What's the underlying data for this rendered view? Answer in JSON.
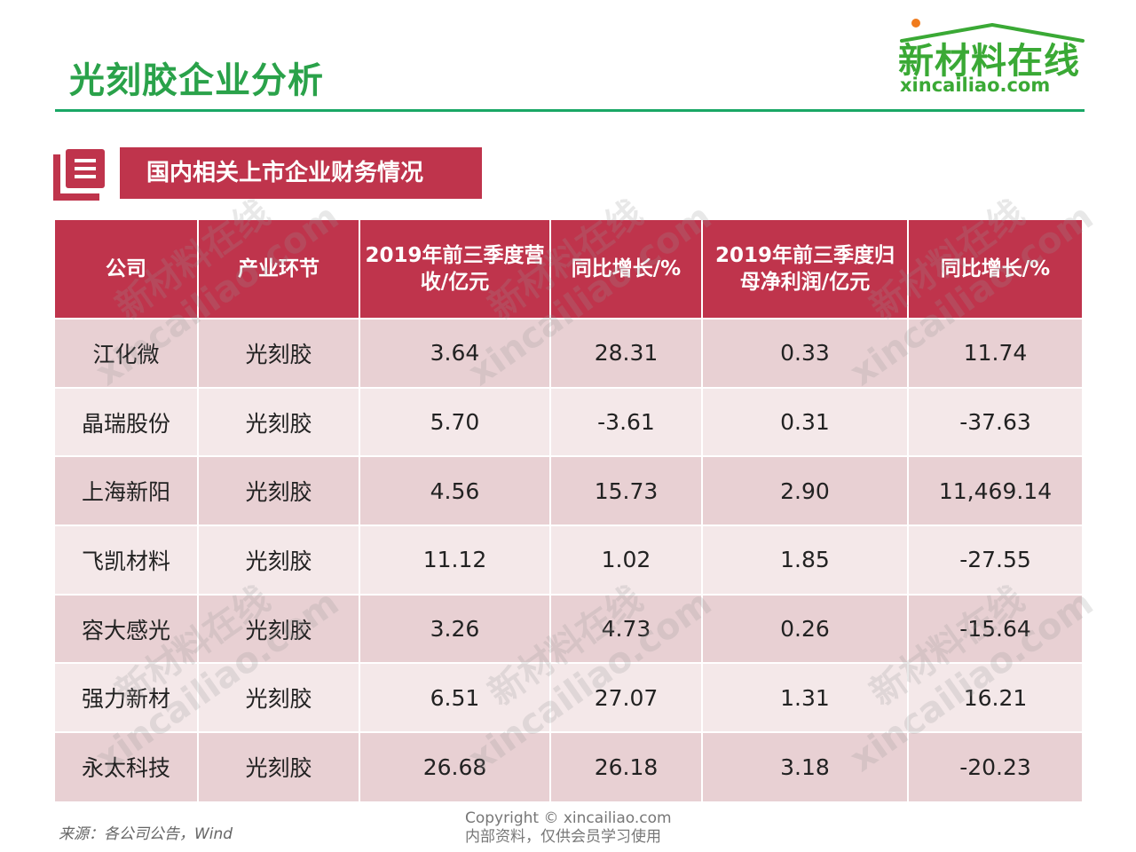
{
  "title": "光刻胶企业分析",
  "logo": {
    "cn": "新材料在线",
    "en": "xincailiao.com"
  },
  "section": {
    "title": "国内相关上市企业财务情况"
  },
  "table": {
    "headers": [
      "公司",
      "产业环节",
      "2019年前三季度营收/亿元",
      "同比增长/%",
      "2019年前三季度归母净利润/亿元",
      "同比增长/%"
    ],
    "rows": [
      [
        "江化微",
        "光刻胶",
        "3.64",
        "28.31",
        "0.33",
        "11.74"
      ],
      [
        "晶瑞股份",
        "光刻胶",
        "5.70",
        "-3.61",
        "0.31",
        "-37.63"
      ],
      [
        "上海新阳",
        "光刻胶",
        "4.56",
        "15.73",
        "2.90",
        "11,469.14"
      ],
      [
        "飞凯材料",
        "光刻胶",
        "11.12",
        "1.02",
        "1.85",
        "-27.55"
      ],
      [
        "容大感光",
        "光刻胶",
        "3.26",
        "4.73",
        "0.26",
        "-15.64"
      ],
      [
        "强力新材",
        "光刻胶",
        "6.51",
        "27.07",
        "1.31",
        "16.21"
      ],
      [
        "永太科技",
        "光刻胶",
        "26.68",
        "26.18",
        "3.18",
        "-20.23"
      ]
    ]
  },
  "watermark": {
    "cn": "新材料在线",
    "en": "xincailiao.com"
  },
  "footer": {
    "source": "来源：各公司公告，Wind",
    "copyright_line1": "Copyright © xincailiao.com",
    "copyright_line2": "内部资料，仅供会员学习使用"
  },
  "colors": {
    "title_green": "#2aa24a",
    "rule_green": "#19a765",
    "header_red": "#bf344c",
    "row_odd": "#e8d0d3",
    "row_even": "#f4e8e9"
  }
}
